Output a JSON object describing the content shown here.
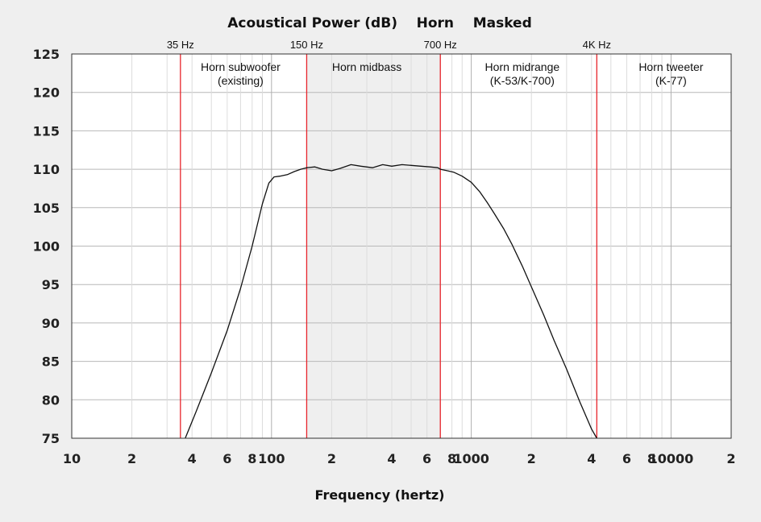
{
  "chart_data": {
    "type": "line",
    "title": "Acoustical Power (dB)    Horn    Masked",
    "xlabel": "Frequency (hertz)",
    "ylabel": "",
    "x_scale": "log",
    "xlim": [
      10,
      20000
    ],
    "ylim": [
      75,
      125
    ],
    "y_ticks": [
      75,
      80,
      85,
      90,
      95,
      100,
      105,
      110,
      115,
      120,
      125
    ],
    "x_ticks": [
      {
        "value": 10,
        "label": "10"
      },
      {
        "value": 20,
        "label": "2"
      },
      {
        "value": 40,
        "label": "4"
      },
      {
        "value": 60,
        "label": "6"
      },
      {
        "value": 80,
        "label": "8"
      },
      {
        "value": 100,
        "label": "100"
      },
      {
        "value": 200,
        "label": "2"
      },
      {
        "value": 400,
        "label": "4"
      },
      {
        "value": 600,
        "label": "6"
      },
      {
        "value": 800,
        "label": "8"
      },
      {
        "value": 1000,
        "label": "1000"
      },
      {
        "value": 2000,
        "label": "2"
      },
      {
        "value": 4000,
        "label": "4"
      },
      {
        "value": 6000,
        "label": "6"
      },
      {
        "value": 8000,
        "label": "8"
      },
      {
        "value": 10000,
        "label": "10000"
      },
      {
        "value": 20000,
        "label": "2"
      }
    ],
    "grid": true,
    "shaded_region": [
      150,
      700
    ],
    "markers": [
      {
        "x": 35,
        "label": "35 Hz"
      },
      {
        "x": 150,
        "label": "150 Hz"
      },
      {
        "x": 700,
        "label": "700 Hz"
      },
      {
        "x": 4250,
        "label": "4K Hz"
      }
    ],
    "regions": [
      {
        "x": 70,
        "lines": [
          "Horn subwoofer",
          "(existing)"
        ]
      },
      {
        "x": 300,
        "lines": [
          "Horn midbass"
        ]
      },
      {
        "x": 1800,
        "lines": [
          "Horn midrange",
          "(K-53/K-700)"
        ]
      },
      {
        "x": 10000,
        "lines": [
          "Horn tweeter",
          "(K-77)"
        ]
      }
    ],
    "series": [
      {
        "color": "#111111",
        "x": [
          37,
          42,
          50,
          60,
          70,
          80,
          90,
          97,
          103,
          110,
          120,
          130,
          140,
          150,
          165,
          180,
          200,
          220,
          250,
          280,
          320,
          360,
          400,
          450,
          500,
          560,
          620,
          680,
          700,
          760,
          820,
          900,
          1000,
          1100,
          1200,
          1300,
          1450,
          1600,
          1800,
          2000,
          2300,
          2600,
          3000,
          3500,
          4000,
          4250
        ],
        "y": [
          75,
          78.5,
          83.5,
          89,
          94.5,
          100,
          105.5,
          108.2,
          109,
          109.1,
          109.3,
          109.7,
          110,
          110.2,
          110.3,
          110,
          109.8,
          110.1,
          110.6,
          110.4,
          110.2,
          110.6,
          110.4,
          110.6,
          110.5,
          110.4,
          110.3,
          110.2,
          110,
          109.8,
          109.6,
          109.1,
          108.3,
          107.1,
          105.7,
          104.3,
          102.3,
          100.2,
          97.4,
          94.7,
          91.1,
          87.7,
          84,
          79.7,
          76.2,
          75
        ]
      }
    ]
  }
}
